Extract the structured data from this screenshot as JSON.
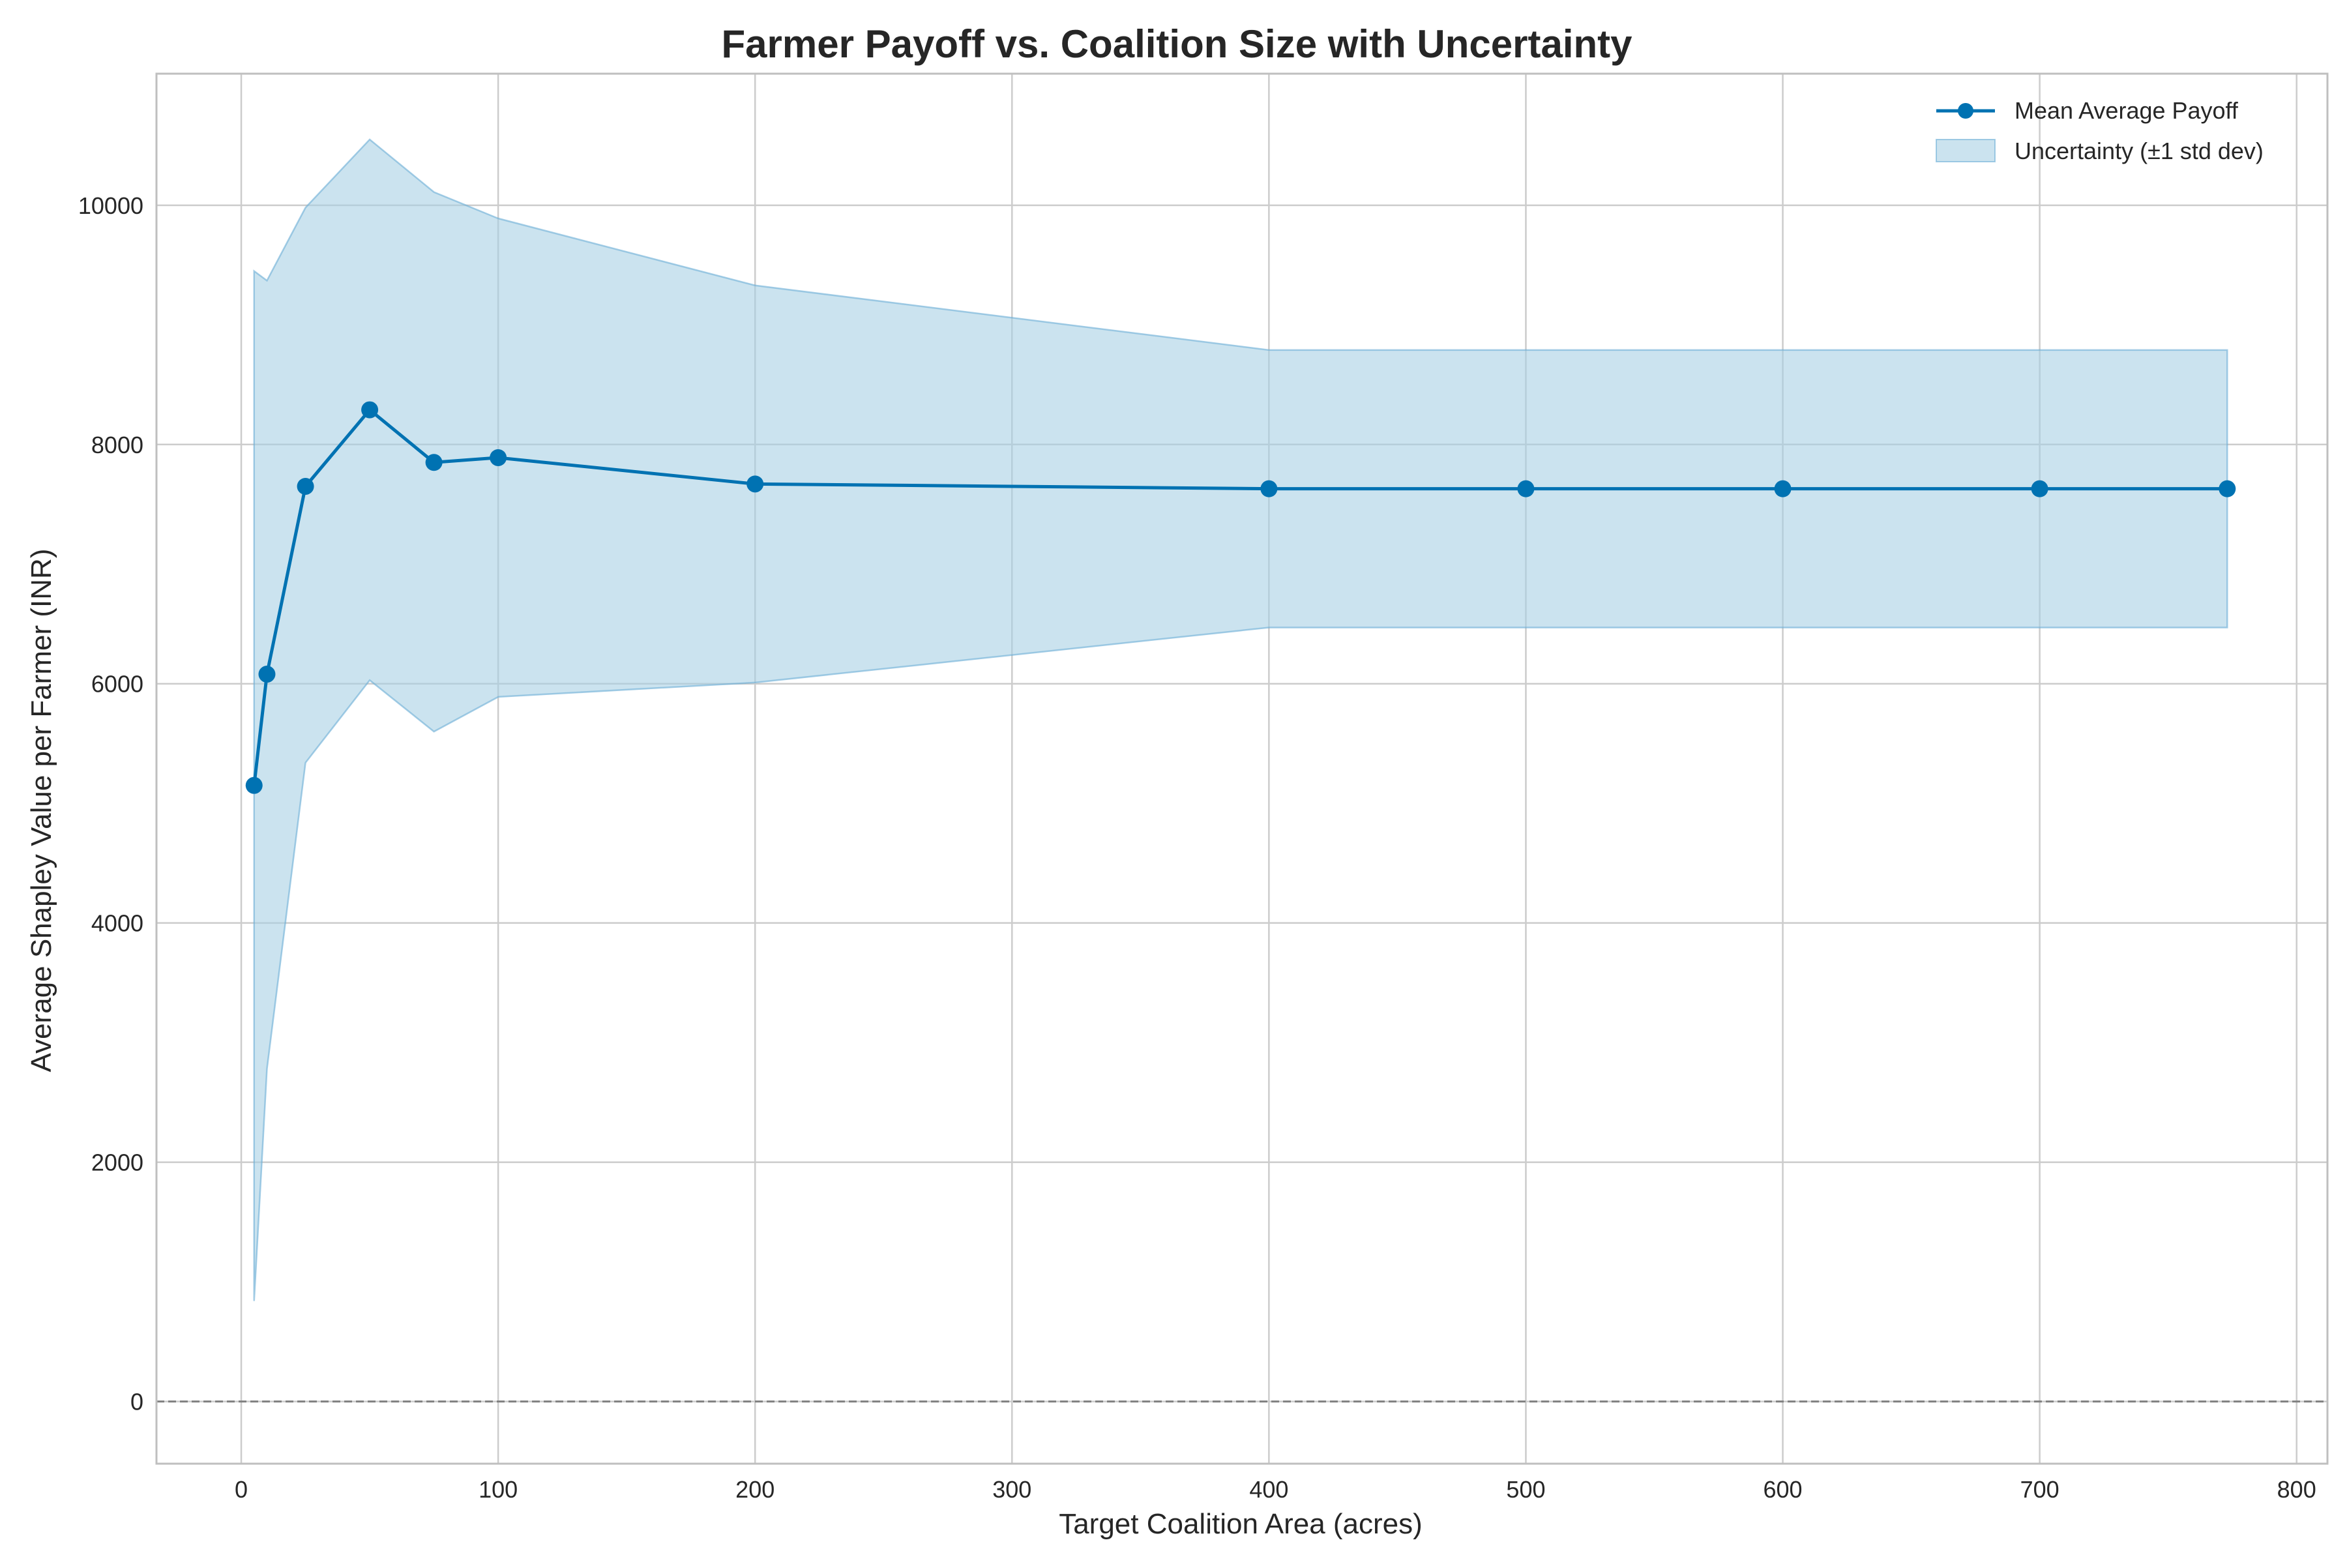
{
  "colors": {
    "line": "#0072b2",
    "band_fill": "#a6cee3",
    "band_edge": "#6baed6",
    "grid": "#cccccc",
    "zero_line": "#808080",
    "frame": "#bfbfbf"
  },
  "chart_data": {
    "type": "line",
    "title": "Farmer Payoff vs. Coalition Size with Uncertainty",
    "xlabel": "Target Coalition Area (acres)",
    "ylabel": "Average Shapley Value per Farmer (INR)",
    "xlim": [
      -33,
      812
    ],
    "ylim": [
      -520,
      11100
    ],
    "xticks": [
      0,
      100,
      200,
      300,
      400,
      500,
      600,
      700,
      800
    ],
    "yticks": [
      0,
      2000,
      4000,
      6000,
      8000,
      10000
    ],
    "grid": true,
    "legend_position": "top-right",
    "reference_line": {
      "y": 0,
      "style": "dashed"
    },
    "series": [
      {
        "name": "Mean Average Payoff",
        "marker": "circle",
        "x": [
          5,
          10,
          25,
          50,
          75,
          100,
          200,
          400,
          500,
          600,
          700,
          773
        ],
        "y": [
          5150,
          6080,
          7650,
          8290,
          7850,
          7890,
          7670,
          7630,
          7630,
          7630,
          7630,
          7630
        ]
      }
    ],
    "band": {
      "name": "Uncertainty (±1 std dev)",
      "x": [
        5,
        10,
        25,
        50,
        75,
        100,
        200,
        400,
        500,
        600,
        700,
        773
      ],
      "upper": [
        9450,
        9370,
        9980,
        10550,
        10110,
        9890,
        9330,
        8790,
        8790,
        8790,
        8790,
        8790
      ],
      "lower": [
        840,
        2780,
        5340,
        6030,
        5600,
        5890,
        6010,
        6470,
        6470,
        6470,
        6470,
        6470
      ]
    }
  }
}
